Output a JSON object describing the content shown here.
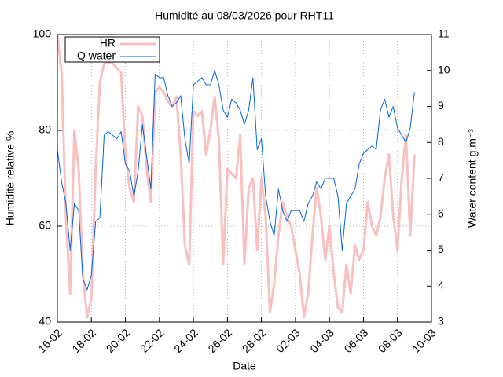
{
  "chart_data": {
    "type": "line",
    "title": "Humidité au 08/03/2026 pour RHT11",
    "xlabel": "Date",
    "ylabel": "Humidité relative %",
    "y2label": "Water content g.m⁻³",
    "x": [
      "2026-02-16T00:00",
      "2026-02-16T06:00",
      "2026-02-16T12:00",
      "2026-02-16T18:00",
      "2026-02-17T00:00",
      "2026-02-17T06:00",
      "2026-02-17T12:00",
      "2026-02-17T18:00",
      "2026-02-18T00:00",
      "2026-02-18T06:00",
      "2026-02-18T12:00",
      "2026-02-18T18:00",
      "2026-02-19T00:00",
      "2026-02-19T06:00",
      "2026-02-19T12:00",
      "2026-02-19T18:00",
      "2026-02-20T00:00",
      "2026-02-20T06:00",
      "2026-02-20T12:00",
      "2026-02-20T18:00",
      "2026-02-21T00:00",
      "2026-02-21T06:00",
      "2026-02-21T12:00",
      "2026-02-21T18:00",
      "2026-02-22T00:00",
      "2026-02-22T06:00",
      "2026-02-22T12:00",
      "2026-02-22T18:00",
      "2026-02-23T00:00",
      "2026-02-23T06:00",
      "2026-02-23T12:00",
      "2026-02-23T18:00",
      "2026-02-24T00:00",
      "2026-02-24T06:00",
      "2026-02-24T12:00",
      "2026-02-24T18:00",
      "2026-02-25T00:00",
      "2026-02-25T06:00",
      "2026-02-25T12:00",
      "2026-02-25T18:00",
      "2026-02-26T00:00",
      "2026-02-26T06:00",
      "2026-02-26T12:00",
      "2026-02-26T18:00",
      "2026-02-27T00:00",
      "2026-02-27T06:00",
      "2026-02-27T12:00",
      "2026-02-27T18:00",
      "2026-02-28T00:00",
      "2026-02-28T06:00",
      "2026-02-28T12:00",
      "2026-02-28T18:00",
      "2026-03-01T00:00",
      "2026-03-01T06:00",
      "2026-03-01T12:00",
      "2026-03-01T18:00",
      "2026-03-02T00:00",
      "2026-03-02T06:00",
      "2026-03-02T12:00",
      "2026-03-02T18:00",
      "2026-03-03T00:00",
      "2026-03-03T06:00",
      "2026-03-03T12:00",
      "2026-03-03T18:00",
      "2026-03-04T00:00",
      "2026-03-04T06:00",
      "2026-03-04T12:00",
      "2026-03-04T18:00",
      "2026-03-05T00:00",
      "2026-03-05T06:00",
      "2026-03-05T12:00",
      "2026-03-05T18:00",
      "2026-03-06T00:00",
      "2026-03-06T06:00",
      "2026-03-06T12:00",
      "2026-03-06T18:00",
      "2026-03-07T00:00",
      "2026-03-07T06:00",
      "2026-03-07T12:00",
      "2026-03-07T18:00",
      "2026-03-08T00:00",
      "2026-03-08T06:00",
      "2026-03-08T12:00",
      "2026-03-08T18:00",
      "2026-03-09T00:00"
    ],
    "series": [
      {
        "name": "HR",
        "color": "#f9c0c0",
        "values": [
          100,
          92,
          62,
          46,
          80,
          72,
          50,
          41,
          45,
          72,
          90,
          94,
          94,
          94,
          93,
          92,
          75,
          68,
          65,
          85,
          83,
          72,
          65,
          88,
          89,
          88,
          86,
          85,
          87,
          75,
          56,
          52,
          84,
          83,
          84,
          75,
          80,
          87,
          78,
          52,
          72,
          71,
          70,
          79,
          52,
          68,
          70,
          55,
          70,
          62,
          42,
          48,
          58,
          65,
          62,
          60,
          55,
          50,
          41,
          46,
          58,
          68,
          62,
          53,
          60,
          50,
          43,
          42,
          52,
          46,
          56,
          53,
          55,
          65,
          60,
          58,
          62,
          70,
          75,
          62,
          55,
          70,
          79,
          58,
          75
        ]
      },
      {
        "name": "Q water",
        "color": "#0066dd",
        "axis": "y2",
        "values": [
          7.8,
          6.9,
          6.3,
          5.0,
          6.3,
          6.1,
          4.2,
          3.9,
          4.3,
          5.8,
          5.9,
          8.2,
          8.3,
          8.2,
          8.1,
          8.3,
          7.4,
          7.2,
          6.5,
          7.2,
          8.5,
          7.6,
          6.7,
          9.9,
          9.8,
          9.8,
          9.3,
          9.0,
          9.1,
          9.3,
          8.1,
          7.4,
          9.6,
          9.7,
          9.8,
          9.6,
          9.6,
          10.0,
          9.6,
          8.9,
          8.7,
          9.2,
          9.1,
          8.9,
          8.5,
          8.9,
          9.8,
          7.8,
          8.1,
          6.5,
          5.8,
          5.4,
          6.7,
          6.1,
          5.8,
          6.1,
          6.1,
          6.1,
          5.8,
          6.3,
          6.5,
          6.9,
          6.7,
          7.0,
          7.0,
          7.0,
          6.5,
          5.0,
          6.3,
          6.5,
          6.7,
          7.4,
          7.7,
          7.8,
          7.9,
          7.8,
          8.9,
          9.2,
          8.7,
          9.0,
          8.4,
          8.2,
          8.0,
          8.4,
          9.4
        ]
      }
    ],
    "xlim": [
      "2026-02-16T00:00",
      "2026-03-10T00:00"
    ],
    "xticks": [
      {
        "value": "2026-02-16T00:00",
        "label": "16-02"
      },
      {
        "value": "2026-02-18T00:00",
        "label": "18-02"
      },
      {
        "value": "2026-02-20T00:00",
        "label": "20-02"
      },
      {
        "value": "2026-02-22T00:00",
        "label": "22-02"
      },
      {
        "value": "2026-02-24T00:00",
        "label": "24-02"
      },
      {
        "value": "2026-02-26T00:00",
        "label": "26-02"
      },
      {
        "value": "2026-02-28T00:00",
        "label": "28-02"
      },
      {
        "value": "2026-03-02T00:00",
        "label": "02-03"
      },
      {
        "value": "2026-03-04T00:00",
        "label": "04-03"
      },
      {
        "value": "2026-03-06T00:00",
        "label": "06-03"
      },
      {
        "value": "2026-03-08T00:00",
        "label": "08-03"
      },
      {
        "value": "2026-03-10T00:00",
        "label": "10-03"
      }
    ],
    "ylim": [
      40,
      100
    ],
    "yticks": [
      40,
      60,
      80,
      100
    ],
    "y2lim": [
      3,
      11
    ],
    "y2ticks": [
      3,
      4,
      5,
      6,
      7,
      8,
      9,
      10,
      11
    ],
    "grid": true,
    "legend": "top-left"
  }
}
